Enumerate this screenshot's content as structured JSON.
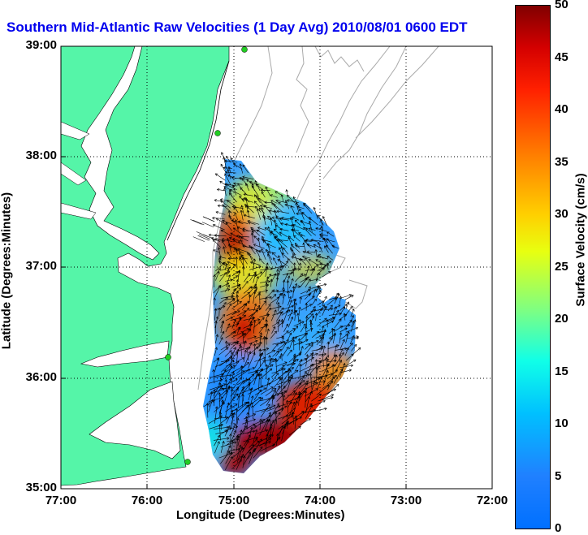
{
  "title": "Southern Mid-Atlantic Raw Velocities (1 Day Avg) 2010/08/01 0600 EDT",
  "x_axis": {
    "label": "Longitude (Degrees:Minutes)",
    "ticks": [
      "77:00",
      "76:00",
      "75:00",
      "74:00",
      "73:00",
      "72:00"
    ],
    "range": [
      -77,
      -72
    ]
  },
  "y_axis": {
    "label": "Latitude (Degrees:Minutes)",
    "ticks": [
      "39:00",
      "38:00",
      "37:00",
      "36:00",
      "35:00"
    ],
    "range": [
      35,
      39
    ]
  },
  "colorbar": {
    "label": "Surface Velocity (cm/s)",
    "ticks": [
      "50",
      "45",
      "40",
      "35",
      "30",
      "25",
      "20",
      "15",
      "10",
      "5",
      "0"
    ],
    "range": [
      0,
      50
    ],
    "colormap": "jet"
  },
  "colors": {
    "land": "#55f5a8",
    "water": "#ffffff",
    "title": "#0000ee",
    "bathymetry": "#aaaaaa",
    "vectors": "#000000",
    "station": "#22cc22"
  },
  "grid": "dotted"
}
